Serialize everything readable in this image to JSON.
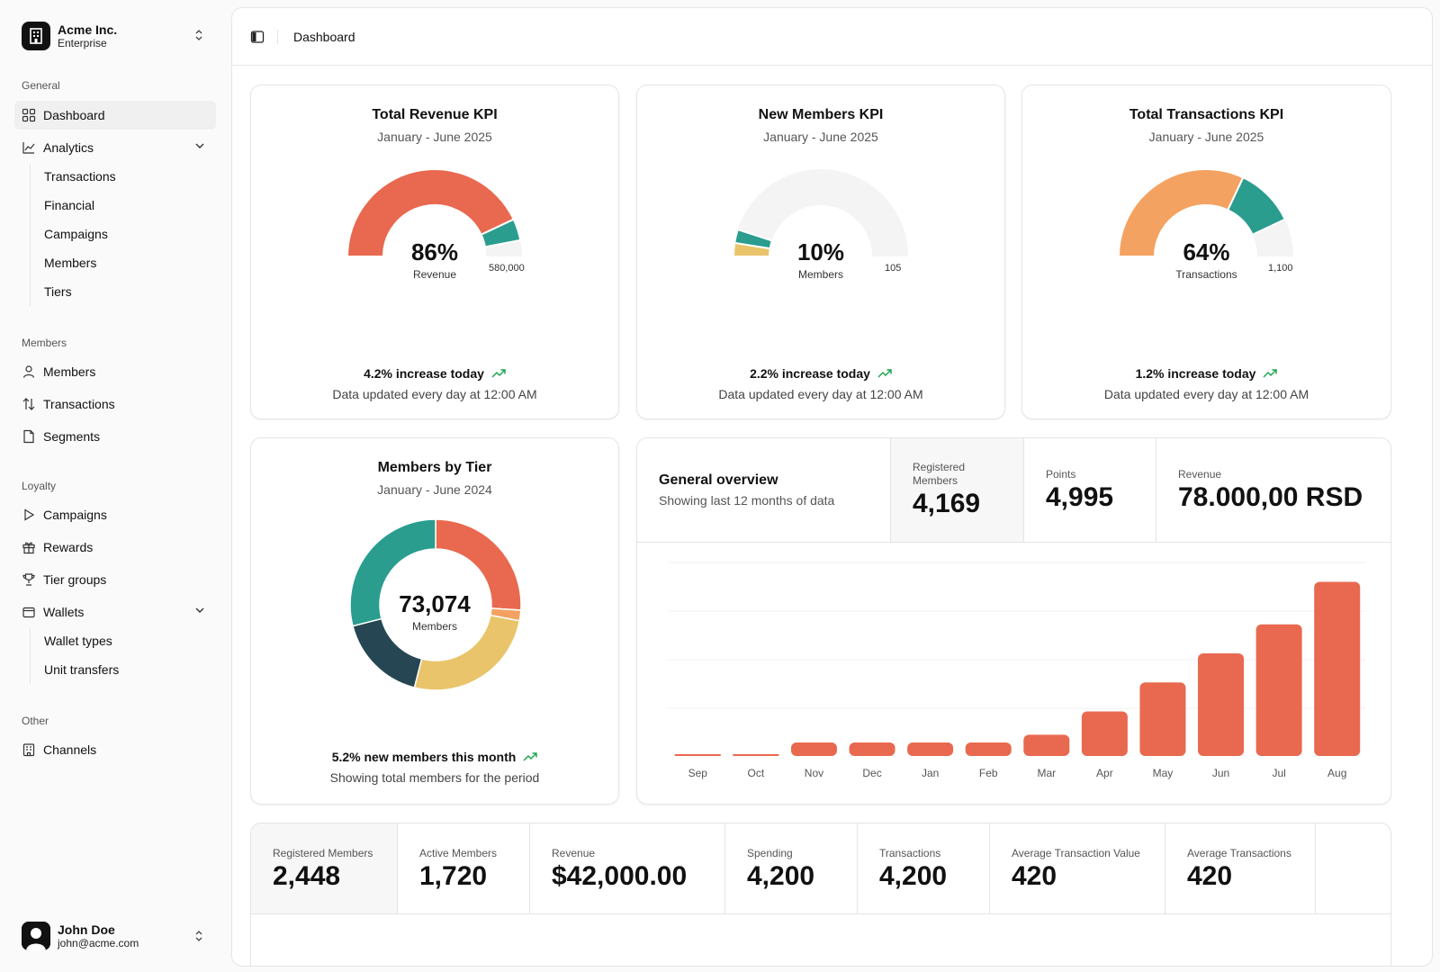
{
  "org": {
    "name": "Acme Inc.",
    "plan": "Enterprise"
  },
  "sidebar": {
    "groups": {
      "general": "General",
      "members": "Members",
      "loyalty": "Loyalty",
      "other": "Other"
    },
    "items": {
      "dashboard": "Dashboard",
      "analytics": "Analytics",
      "analytics_sub": [
        "Transactions",
        "Financial",
        "Campaigns",
        "Members",
        "Tiers"
      ],
      "members": "Members",
      "transactions": "Transactions",
      "segments": "Segments",
      "campaigns": "Campaigns",
      "rewards": "Rewards",
      "tier_groups": "Tier groups",
      "wallets": "Wallets",
      "wallets_sub": [
        "Wallet types",
        "Unit transfers"
      ],
      "channels": "Channels"
    }
  },
  "user": {
    "name": "John Doe",
    "email": "john@acme.com"
  },
  "topbar": {
    "breadcrumb": "Dashboard"
  },
  "kpis": [
    {
      "title": "Total Revenue KPI",
      "period": "January - June 2025",
      "percent": "86%",
      "unit": "Revenue",
      "max": "580,000",
      "trend": "4.2% increase today",
      "footer": "Data updated every day at 12:00 AM"
    },
    {
      "title": "New Members KPI",
      "period": "January - June 2025",
      "percent": "10%",
      "unit": "Members",
      "max": "105",
      "trend": "2.2% increase today",
      "footer": "Data updated every day at 12:00 AM"
    },
    {
      "title": "Total Transactions KPI",
      "period": "January - June 2025",
      "percent": "64%",
      "unit": "Transactions",
      "max": "1,100",
      "trend": "1.2% increase today",
      "footer": "Data updated every day at 12:00 AM"
    }
  ],
  "tiers": {
    "title": "Members by Tier",
    "period": "January - June 2024",
    "total": "73,074",
    "unit": "Members",
    "trend": "5.2% new members this month",
    "footer": "Showing total members for the period"
  },
  "overview": {
    "title": "General overview",
    "subtitle": "Showing last 12 months of data",
    "stats": [
      {
        "label": "Registered Members",
        "value": "4,169"
      },
      {
        "label": "Points",
        "value": "4,995"
      },
      {
        "label": "Revenue",
        "value": "78.000,00 RSD"
      }
    ]
  },
  "bottom_stats": [
    {
      "label": "Registered Members",
      "value": "2,448"
    },
    {
      "label": "Active Members",
      "value": "1,720"
    },
    {
      "label": "Revenue",
      "value": "$42,000.00"
    },
    {
      "label": "Spending",
      "value": "4,200"
    },
    {
      "label": "Transactions",
      "value": "4,200"
    },
    {
      "label": "Average Transaction Value",
      "value": "420"
    },
    {
      "label": "Average Transactions",
      "value": "420"
    }
  ],
  "colors": {
    "coral": "#e8694f",
    "teal": "#2a9d8f",
    "yellow": "#e9c46a",
    "orange": "#f4a261",
    "navy": "#264653",
    "track": "#f4f4f4",
    "up": "#16a34a"
  },
  "chart_data": [
    {
      "type": "gauge",
      "title": "Total Revenue KPI",
      "segments": [
        {
          "color": "#e8694f",
          "value": 86
        },
        {
          "color": "#2a9d8f",
          "value": 8
        }
      ],
      "max_label": "580,000",
      "value_label": "86%"
    },
    {
      "type": "gauge",
      "title": "New Members KPI",
      "segments": [
        {
          "color": "#e9c46a",
          "value": 5
        },
        {
          "color": "#2a9d8f",
          "value": 5
        }
      ],
      "max_label": "105",
      "value_label": "10%"
    },
    {
      "type": "gauge",
      "title": "Total Transactions KPI",
      "segments": [
        {
          "color": "#f4a261",
          "value": 64
        },
        {
          "color": "#2a9d8f",
          "value": 22
        }
      ],
      "max_label": "1,100",
      "value_label": "64%"
    },
    {
      "type": "pie",
      "title": "Members by Tier",
      "slices": [
        {
          "color": "#e8694f",
          "value": 26
        },
        {
          "color": "#f4a261",
          "value": 2
        },
        {
          "color": "#e9c46a",
          "value": 26
        },
        {
          "color": "#264653",
          "value": 17
        },
        {
          "color": "#2a9d8f",
          "value": 29
        }
      ]
    },
    {
      "type": "bar",
      "title": "General overview",
      "categories": [
        "Sep",
        "Oct",
        "Nov",
        "Dec",
        "Jan",
        "Feb",
        "Mar",
        "Apr",
        "May",
        "Jun",
        "Jul",
        "Aug"
      ],
      "values": [
        0,
        0,
        7,
        7,
        7,
        7,
        11,
        23,
        38,
        53,
        68,
        90
      ],
      "ylim": [
        0,
        100
      ]
    }
  ]
}
